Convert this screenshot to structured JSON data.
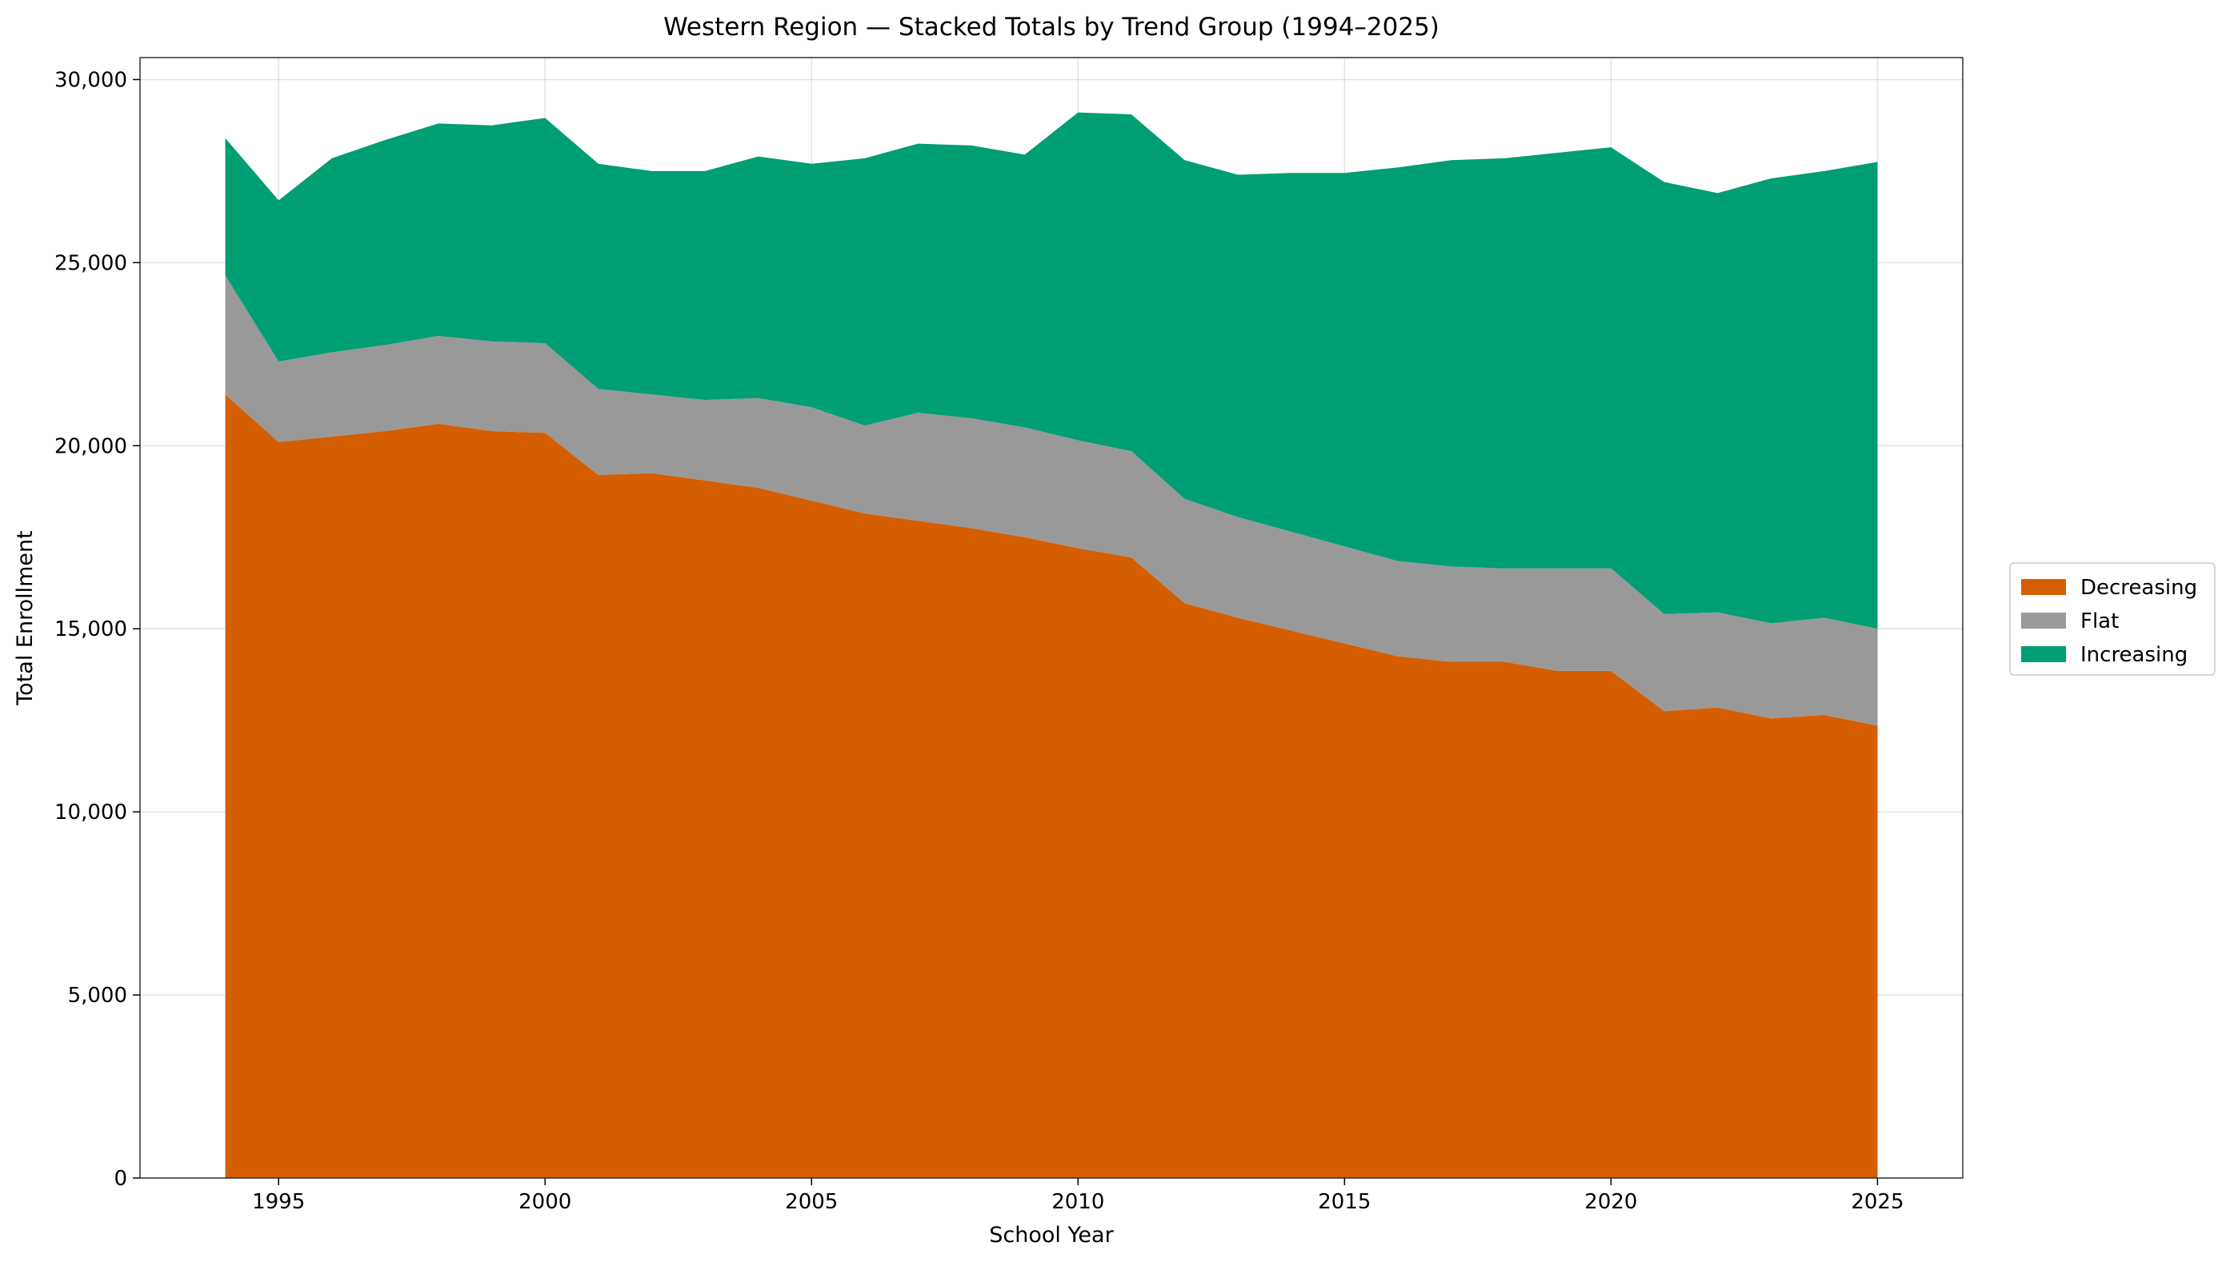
{
  "chart_data": {
    "type": "area",
    "stacked": true,
    "title": "Western Region — Stacked Totals by Trend Group (1994–2025)",
    "xlabel": "School Year",
    "ylabel": "Total Enrollment",
    "xlim": [
      1992.4,
      2026.6
    ],
    "ylim": [
      0,
      30600
    ],
    "xticks": [
      1995,
      2000,
      2005,
      2010,
      2015,
      2020,
      2025
    ],
    "xtick_labels": [
      "1995",
      "2000",
      "2005",
      "2010",
      "2015",
      "2020",
      "2025"
    ],
    "yticks": [
      0,
      5000,
      10000,
      15000,
      20000,
      25000,
      30000
    ],
    "ytick_labels": [
      "0",
      "5,000",
      "10,000",
      "15,000",
      "20,000",
      "25,000",
      "30,000"
    ],
    "grid": true,
    "legend_position": "right",
    "x": [
      1994,
      1995,
      1996,
      1997,
      1998,
      1999,
      2000,
      2001,
      2002,
      2003,
      2004,
      2005,
      2006,
      2007,
      2008,
      2009,
      2010,
      2011,
      2012,
      2013,
      2014,
      2015,
      2016,
      2017,
      2018,
      2019,
      2020,
      2021,
      2022,
      2023,
      2024,
      2025
    ],
    "series": [
      {
        "name": "Decreasing",
        "color": "#d55e00",
        "values": [
          21400,
          20100,
          20250,
          20400,
          20600,
          20400,
          20350,
          19200,
          19250,
          19050,
          18850,
          18500,
          18150,
          17950,
          17750,
          17500,
          17200,
          16950,
          15700,
          15300,
          14950,
          14600,
          14250,
          14100,
          14100,
          13850,
          13850,
          12750,
          12850,
          12550,
          12650,
          12350
        ]
      },
      {
        "name": "Flat",
        "color": "#999999",
        "values": [
          3250,
          2200,
          2300,
          2350,
          2400,
          2450,
          2450,
          2350,
          2150,
          2200,
          2450,
          2550,
          2400,
          2950,
          3000,
          3000,
          2950,
          2900,
          2850,
          2750,
          2700,
          2650,
          2600,
          2600,
          2550,
          2800,
          2800,
          2650,
          2600,
          2600,
          2650,
          2650
        ]
      },
      {
        "name": "Increasing",
        "color": "#009e73",
        "values": [
          3750,
          4400,
          5300,
          5600,
          5800,
          5900,
          6150,
          6150,
          6100,
          6250,
          6600,
          6650,
          7300,
          7350,
          7450,
          7450,
          8950,
          9200,
          9250,
          9350,
          9800,
          10200,
          10750,
          11100,
          11200,
          11350,
          11500,
          11800,
          11450,
          12150,
          12200,
          12750
        ]
      }
    ]
  }
}
